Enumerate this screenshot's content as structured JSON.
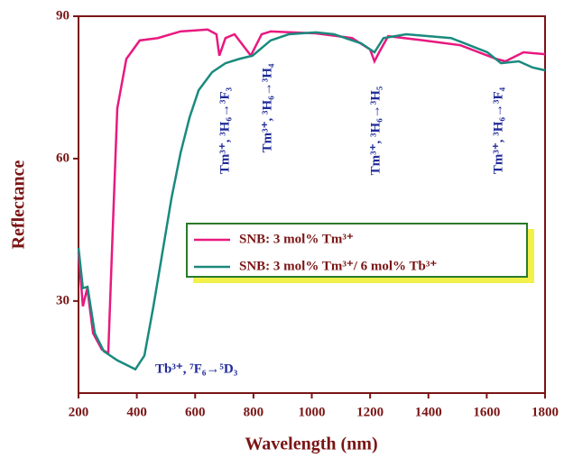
{
  "chart_data": {
    "type": "line",
    "x_label": "Wavelength (nm)",
    "y_label": "Reflectance",
    "xlim": [
      200,
      1800
    ],
    "ylim": [
      10.6,
      90
    ],
    "xticks": [
      200,
      400,
      600,
      800,
      1000,
      1200,
      1400,
      1600,
      1800
    ],
    "yticks": [
      30,
      60,
      90
    ],
    "series": [
      {
        "name": "SNB: 3 mol% Tm³⁺",
        "color": "#e8197f",
        "x": [
          200,
          215,
          230,
          250,
          280,
          302,
          318,
          333,
          364,
          410,
          472,
          550,
          643,
          673,
          683,
          704,
          735,
          791,
          828,
          859,
          1014,
          1138,
          1200,
          1215,
          1231,
          1262,
          1385,
          1509,
          1633,
          1664,
          1726,
          1800
        ],
        "values": [
          40.3,
          28.9,
          32.7,
          23.2,
          19.8,
          19,
          46,
          70.6,
          81,
          84.9,
          85.4,
          86.8,
          87.2,
          86.2,
          81.7,
          85.4,
          86.2,
          81.7,
          86.2,
          86.8,
          86.4,
          85.4,
          83,
          80.5,
          82.4,
          85.8,
          84.9,
          83.9,
          81,
          80.5,
          82.4,
          82
        ]
      },
      {
        "name": "SNB: 3 mol% Tm³⁺/ 6 mol% Tb³⁺",
        "color": "#1a8a7e",
        "x": [
          200,
          215,
          231,
          256,
          287,
          333,
          395,
          426,
          457,
          488,
          519,
          550,
          581,
          612,
          658,
          704,
          751,
          797,
          859,
          921,
          1014,
          1076,
          1169,
          1215,
          1246,
          1324,
          1478,
          1602,
          1649,
          1710,
          1757,
          1800
        ],
        "values": [
          41.2,
          32.7,
          33,
          23.2,
          19.4,
          17.5,
          15.6,
          18.5,
          28.9,
          40.3,
          51.7,
          61.2,
          68.7,
          74.4,
          78.2,
          80.1,
          81,
          81.7,
          84.9,
          86.2,
          86.6,
          86.2,
          84.3,
          82.4,
          85.4,
          86.2,
          85.4,
          82.4,
          80.1,
          80.5,
          79.2,
          78.6
        ]
      }
    ],
    "annotations": [
      "Tm³⁺, ³H₆→³F₃",
      "Tm³⁺, ³H₆→³H₄",
      "Tm³⁺, ³H₆→³H₅",
      "Tm³⁺, ³H₆→³F₄",
      "Tb³⁺, ⁷F₆→⁵D₃"
    ]
  }
}
